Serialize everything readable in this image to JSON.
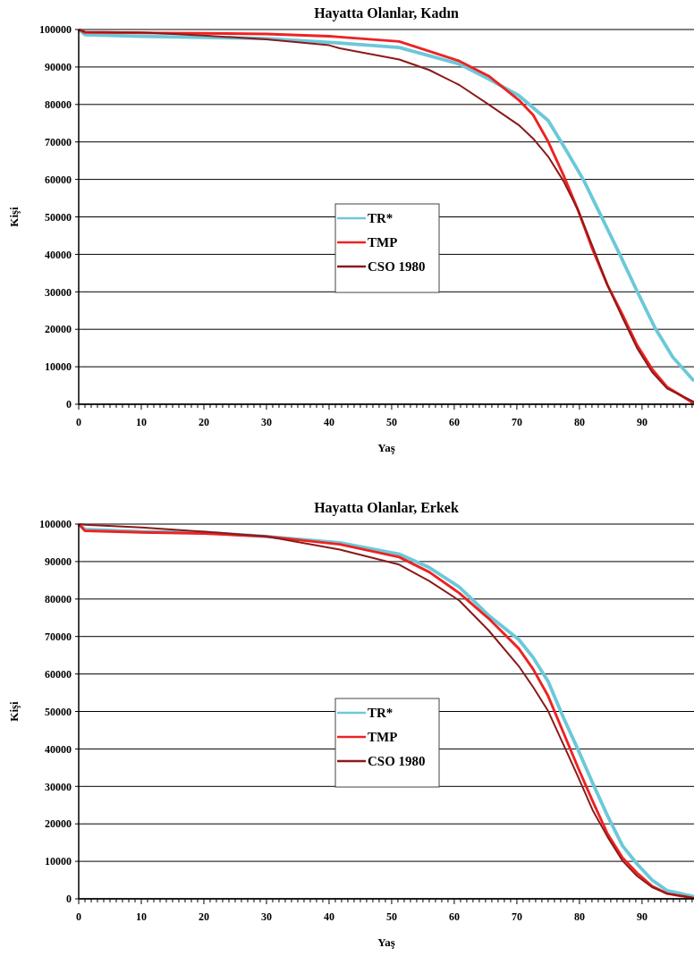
{
  "chart_data": [
    {
      "type": "line",
      "title": "Hayatta Olanlar, Kadın",
      "xlabel": "Yaş",
      "ylabel": "Kişi",
      "xlim": [
        0,
        98.3
      ],
      "ylim": [
        0,
        100000
      ],
      "xticks": [
        0,
        {
          "value": 1,
          "label": null
        },
        {
          "value": 2,
          "label": null
        },
        {
          "value": 3,
          "label": null
        },
        {
          "value": 4,
          "label": null
        },
        {
          "value": 5,
          "label": null
        },
        {
          "value": 6,
          "label": null
        },
        {
          "value": 7,
          "label": null
        },
        {
          "value": 8,
          "label": null
        },
        {
          "value": 9,
          "label": null
        },
        10,
        {
          "value": 11,
          "label": null
        },
        {
          "value": 12,
          "label": null
        },
        {
          "value": 13,
          "label": null
        },
        {
          "value": 14,
          "label": null
        },
        {
          "value": 15,
          "label": null
        },
        {
          "value": 16,
          "label": null
        },
        {
          "value": 17,
          "label": null
        },
        {
          "value": 18,
          "label": null
        },
        {
          "value": 19,
          "label": null
        },
        20,
        {
          "value": 21,
          "label": null
        },
        {
          "value": 22,
          "label": null
        },
        {
          "value": 23,
          "label": null
        },
        {
          "value": 24,
          "label": null
        },
        {
          "value": 25,
          "label": null
        },
        {
          "value": 26,
          "label": null
        },
        {
          "value": 27,
          "label": null
        },
        {
          "value": 28,
          "label": null
        },
        {
          "value": 29,
          "label": null
        },
        30,
        {
          "value": 31,
          "label": null
        },
        {
          "value": 32,
          "label": null
        },
        {
          "value": 33,
          "label": null
        },
        {
          "value": 34,
          "label": null
        },
        {
          "value": 35,
          "label": null
        },
        {
          "value": 36,
          "label": null
        },
        {
          "value": 37,
          "label": null
        },
        {
          "value": 38,
          "label": null
        },
        {
          "value": 39,
          "label": null
        },
        40,
        {
          "value": 41,
          "label": null
        },
        {
          "value": 42,
          "label": null
        },
        {
          "value": 43,
          "label": null
        },
        {
          "value": 44,
          "label": null
        },
        {
          "value": 45,
          "label": null
        },
        {
          "value": 46,
          "label": null
        },
        {
          "value": 47,
          "label": null
        },
        {
          "value": 48,
          "label": null
        },
        {
          "value": 49,
          "label": null
        },
        50,
        {
          "value": 51,
          "label": null
        },
        {
          "value": 52,
          "label": null
        },
        {
          "value": 53,
          "label": null
        },
        {
          "value": 54,
          "label": null
        },
        {
          "value": 55,
          "label": null
        },
        {
          "value": 56,
          "label": null
        },
        {
          "value": 57,
          "label": null
        },
        {
          "value": 58,
          "label": null
        },
        {
          "value": 59,
          "label": null
        },
        60,
        {
          "value": 61,
          "label": null
        },
        {
          "value": 62,
          "label": null
        },
        {
          "value": 63,
          "label": null
        },
        {
          "value": 64,
          "label": null
        },
        {
          "value": 65,
          "label": null
        },
        {
          "value": 66,
          "label": null
        },
        {
          "value": 67,
          "label": null
        },
        {
          "value": 68,
          "label": null
        },
        {
          "value": 69,
          "label": null
        },
        70,
        {
          "value": 71,
          "label": null
        },
        {
          "value": 72,
          "label": null
        },
        {
          "value": 73,
          "label": null
        },
        {
          "value": 74,
          "label": null
        },
        {
          "value": 75,
          "label": null
        },
        {
          "value": 76,
          "label": null
        },
        {
          "value": 77,
          "label": null
        },
        {
          "value": 78,
          "label": null
        },
        {
          "value": 79,
          "label": null
        },
        80,
        {
          "value": 81,
          "label": null
        },
        {
          "value": 82,
          "label": null
        },
        {
          "value": 83,
          "label": null
        },
        {
          "value": 84,
          "label": null
        },
        {
          "value": 85,
          "label": null
        },
        {
          "value": 86,
          "label": null
        },
        {
          "value": 87,
          "label": null
        },
        {
          "value": 88,
          "label": null
        },
        {
          "value": 89,
          "label": null
        },
        90,
        {
          "value": 91,
          "label": null
        },
        {
          "value": 92,
          "label": null
        },
        {
          "value": 93,
          "label": null
        },
        {
          "value": 94,
          "label": null
        },
        {
          "value": 95,
          "label": null
        },
        {
          "value": 96,
          "label": null
        },
        {
          "value": 97,
          "label": null
        },
        {
          "value": 98,
          "label": null
        }
      ],
      "yticks": [
        0,
        10000,
        20000,
        30000,
        40000,
        50000,
        60000,
        70000,
        80000,
        90000,
        100000
      ],
      "grid": "y",
      "legend": "center",
      "line_style": "solid",
      "marker": "none",
      "series": [
        {
          "name": "TR*",
          "color": "#6cc8d8",
          "x": [
            0,
            1,
            10,
            30,
            41.7,
            51.2,
            60.8,
            65.5,
            70.3,
            75,
            77.9,
            80.7,
            83.5,
            86.3,
            89.2,
            92,
            94.9,
            98.3
          ],
          "values": [
            100000,
            98600,
            98200,
            97600,
            96400,
            95200,
            90800,
            86800,
            82400,
            75700,
            67700,
            59700,
            50100,
            40500,
            30200,
            20600,
            12600,
            6200
          ]
        },
        {
          "name": "TMP",
          "color": "#ee2222",
          "x": [
            0,
            1,
            20,
            30,
            40,
            41.7,
            51.2,
            60.8,
            65.5,
            70.3,
            72.6,
            75,
            77.4,
            79.8,
            82.1,
            84.5,
            86.9,
            89.2,
            91.6,
            94,
            98.3
          ],
          "values": [
            100000,
            99200,
            99000,
            98800,
            98200,
            98000,
            96800,
            91600,
            87600,
            81200,
            77200,
            70100,
            61300,
            51700,
            41300,
            31700,
            23800,
            15800,
            9400,
            4600,
            200
          ]
        },
        {
          "name": "CSO 1980",
          "color": "#8b1a1a",
          "x": [
            0,
            1,
            10,
            20,
            30,
            40,
            41.7,
            51.2,
            56,
            60.8,
            65.5,
            70.3,
            72.6,
            75,
            77.4,
            79.8,
            82.1,
            84.5,
            86.9,
            89.2,
            91.6,
            94,
            98.3
          ],
          "values": [
            100000,
            99400,
            99200,
            98400,
            97400,
            95800,
            95000,
            92000,
            89200,
            85200,
            80000,
            74500,
            70900,
            66100,
            59700,
            51700,
            42100,
            31700,
            23000,
            15000,
            8600,
            4200,
            600
          ]
        }
      ]
    },
    {
      "type": "line",
      "title": "Hayatta Olanlar, Erkek",
      "xlabel": "Yaş",
      "ylabel": "Kişi",
      "xlim": [
        0,
        98.3
      ],
      "ylim": [
        0,
        100000
      ],
      "xticks": [
        0,
        {
          "value": 1,
          "label": null
        },
        {
          "value": 2,
          "label": null
        },
        {
          "value": 3,
          "label": null
        },
        {
          "value": 4,
          "label": null
        },
        {
          "value": 5,
          "label": null
        },
        {
          "value": 6,
          "label": null
        },
        {
          "value": 7,
          "label": null
        },
        {
          "value": 8,
          "label": null
        },
        {
          "value": 9,
          "label": null
        },
        10,
        {
          "value": 11,
          "label": null
        },
        {
          "value": 12,
          "label": null
        },
        {
          "value": 13,
          "label": null
        },
        {
          "value": 14,
          "label": null
        },
        {
          "value": 15,
          "label": null
        },
        {
          "value": 16,
          "label": null
        },
        {
          "value": 17,
          "label": null
        },
        {
          "value": 18,
          "label": null
        },
        {
          "value": 19,
          "label": null
        },
        20,
        {
          "value": 21,
          "label": null
        },
        {
          "value": 22,
          "label": null
        },
        {
          "value": 23,
          "label": null
        },
        {
          "value": 24,
          "label": null
        },
        {
          "value": 25,
          "label": null
        },
        {
          "value": 26,
          "label": null
        },
        {
          "value": 27,
          "label": null
        },
        {
          "value": 28,
          "label": null
        },
        {
          "value": 29,
          "label": null
        },
        30,
        {
          "value": 31,
          "label": null
        },
        {
          "value": 32,
          "label": null
        },
        {
          "value": 33,
          "label": null
        },
        {
          "value": 34,
          "label": null
        },
        {
          "value": 35,
          "label": null
        },
        {
          "value": 36,
          "label": null
        },
        {
          "value": 37,
          "label": null
        },
        {
          "value": 38,
          "label": null
        },
        {
          "value": 39,
          "label": null
        },
        40,
        {
          "value": 41,
          "label": null
        },
        {
          "value": 42,
          "label": null
        },
        {
          "value": 43,
          "label": null
        },
        {
          "value": 44,
          "label": null
        },
        {
          "value": 45,
          "label": null
        },
        {
          "value": 46,
          "label": null
        },
        {
          "value": 47,
          "label": null
        },
        {
          "value": 48,
          "label": null
        },
        {
          "value": 49,
          "label": null
        },
        50,
        {
          "value": 51,
          "label": null
        },
        {
          "value": 52,
          "label": null
        },
        {
          "value": 53,
          "label": null
        },
        {
          "value": 54,
          "label": null
        },
        {
          "value": 55,
          "label": null
        },
        {
          "value": 56,
          "label": null
        },
        {
          "value": 57,
          "label": null
        },
        {
          "value": 58,
          "label": null
        },
        {
          "value": 59,
          "label": null
        },
        60,
        {
          "value": 61,
          "label": null
        },
        {
          "value": 62,
          "label": null
        },
        {
          "value": 63,
          "label": null
        },
        {
          "value": 64,
          "label": null
        },
        {
          "value": 65,
          "label": null
        },
        {
          "value": 66,
          "label": null
        },
        {
          "value": 67,
          "label": null
        },
        {
          "value": 68,
          "label": null
        },
        {
          "value": 69,
          "label": null
        },
        70,
        {
          "value": 71,
          "label": null
        },
        {
          "value": 72,
          "label": null
        },
        {
          "value": 73,
          "label": null
        },
        {
          "value": 74,
          "label": null
        },
        {
          "value": 75,
          "label": null
        },
        {
          "value": 76,
          "label": null
        },
        {
          "value": 77,
          "label": null
        },
        {
          "value": 78,
          "label": null
        },
        {
          "value": 79,
          "label": null
        },
        80,
        {
          "value": 81,
          "label": null
        },
        {
          "value": 82,
          "label": null
        },
        {
          "value": 83,
          "label": null
        },
        {
          "value": 84,
          "label": null
        },
        {
          "value": 85,
          "label": null
        },
        {
          "value": 86,
          "label": null
        },
        {
          "value": 87,
          "label": null
        },
        {
          "value": 88,
          "label": null
        },
        {
          "value": 89,
          "label": null
        },
        90,
        {
          "value": 91,
          "label": null
        },
        {
          "value": 92,
          "label": null
        },
        {
          "value": 93,
          "label": null
        },
        {
          "value": 94,
          "label": null
        },
        {
          "value": 95,
          "label": null
        },
        {
          "value": 96,
          "label": null
        },
        {
          "value": 97,
          "label": null
        },
        {
          "value": 98,
          "label": null
        }
      ],
      "yticks": [
        0,
        10000,
        20000,
        30000,
        40000,
        50000,
        60000,
        70000,
        80000,
        90000,
        100000
      ],
      "grid": "y",
      "legend": "center",
      "line_style": "solid",
      "marker": "none",
      "series": [
        {
          "name": "TR*",
          "color": "#6cc8d8",
          "x": [
            0,
            1,
            10,
            20,
            30,
            41.7,
            51.2,
            56,
            60.8,
            65.5,
            70.3,
            72.6,
            75,
            77.4,
            79.8,
            82.1,
            84.5,
            86.9,
            89.2,
            91.6,
            94,
            98.3
          ],
          "values": [
            100000,
            98600,
            98000,
            97800,
            96700,
            95000,
            92000,
            88400,
            83200,
            75600,
            69200,
            64400,
            58000,
            48500,
            39700,
            30900,
            22100,
            14100,
            9300,
            5000,
            2200,
            600
          ]
        },
        {
          "name": "TMP",
          "color": "#ee2222",
          "x": [
            0,
            1,
            10,
            20,
            30,
            41.7,
            51.2,
            56,
            60.8,
            65.5,
            70.3,
            72.6,
            75,
            77.4,
            79.8,
            82.1,
            84.5,
            86.9,
            89.2,
            91.6,
            94,
            98.3
          ],
          "values": [
            100000,
            98200,
            97800,
            97500,
            96700,
            94600,
            91200,
            87200,
            81600,
            74800,
            66800,
            61300,
            54100,
            44500,
            34900,
            26100,
            17300,
            10900,
            6900,
            3400,
            1400,
            200
          ]
        },
        {
          "name": "CSO 1980",
          "color": "#8b1a1a",
          "x": [
            0,
            1,
            10,
            20,
            30,
            41.7,
            51.2,
            56,
            60.8,
            65.5,
            70.3,
            72.6,
            75,
            77.4,
            79.8,
            82.1,
            84.5,
            86.9,
            89.2,
            91.6,
            94,
            98.3
          ],
          "values": [
            100000,
            99800,
            99100,
            98000,
            96700,
            93200,
            89200,
            84800,
            79600,
            71600,
            62100,
            56500,
            50100,
            41300,
            32500,
            23700,
            16500,
            10100,
            6100,
            3100,
            1400,
            200
          ]
        }
      ]
    }
  ]
}
